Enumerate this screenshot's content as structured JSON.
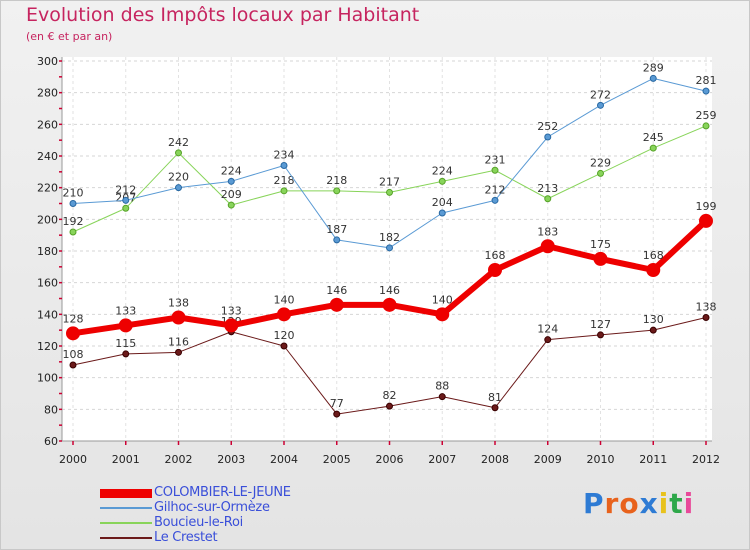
{
  "header": {
    "title": "Evolution des Impôts locaux par Habitant",
    "subtitle": "(en € et par an)"
  },
  "logo": {
    "text": "Proxiti",
    "letter_colors": [
      "#2e7bd4",
      "#e8621c",
      "#e8621c",
      "#2e7bd4",
      "#e8c21c",
      "#2ea84a",
      "#e84a9a"
    ]
  },
  "chart_data": {
    "type": "line",
    "x": [
      "2000",
      "2001",
      "2002",
      "2003",
      "2004",
      "2005",
      "2006",
      "2007",
      "2008",
      "2009",
      "2010",
      "2011",
      "2012"
    ],
    "ylim": [
      60,
      300
    ],
    "yticks": [
      60,
      80,
      100,
      120,
      140,
      160,
      180,
      200,
      220,
      240,
      260,
      280,
      300
    ],
    "grid": "horizontal-dashed",
    "legend_position": "bottom-left",
    "series": [
      {
        "name": "Le Crestet",
        "color": "#6b1a1a",
        "width": 1,
        "values": [
          108,
          115,
          116,
          129,
          120,
          77,
          82,
          88,
          81,
          124,
          127,
          130,
          138
        ]
      },
      {
        "name": "Boucieu-le-Roi",
        "color": "#88d45a",
        "width": 1,
        "values": [
          192,
          207,
          242,
          209,
          218,
          218,
          217,
          224,
          231,
          213,
          229,
          245,
          259
        ]
      },
      {
        "name": "Gilhoc-sur-Ormèze",
        "color": "#5a9ad4",
        "width": 1,
        "values": [
          210,
          212,
          220,
          224,
          234,
          187,
          182,
          204,
          212,
          252,
          272,
          289,
          281
        ]
      },
      {
        "name": "COLOMBIER-LE-JEUNE",
        "color": "#ee0000",
        "width": 6,
        "values": [
          128,
          133,
          138,
          133,
          140,
          146,
          146,
          140,
          168,
          183,
          175,
          168,
          199
        ]
      }
    ],
    "legend": [
      {
        "name": "COLOMBIER-LE-JEUNE",
        "color": "#ee0000",
        "width": 9
      },
      {
        "name": "Gilhoc-sur-Ormèze",
        "color": "#5a9ad4",
        "width": 2
      },
      {
        "name": "Boucieu-le-Roi",
        "color": "#88d45a",
        "width": 2
      },
      {
        "name": "Le Crestet",
        "color": "#6b1a1a",
        "width": 2
      }
    ]
  }
}
